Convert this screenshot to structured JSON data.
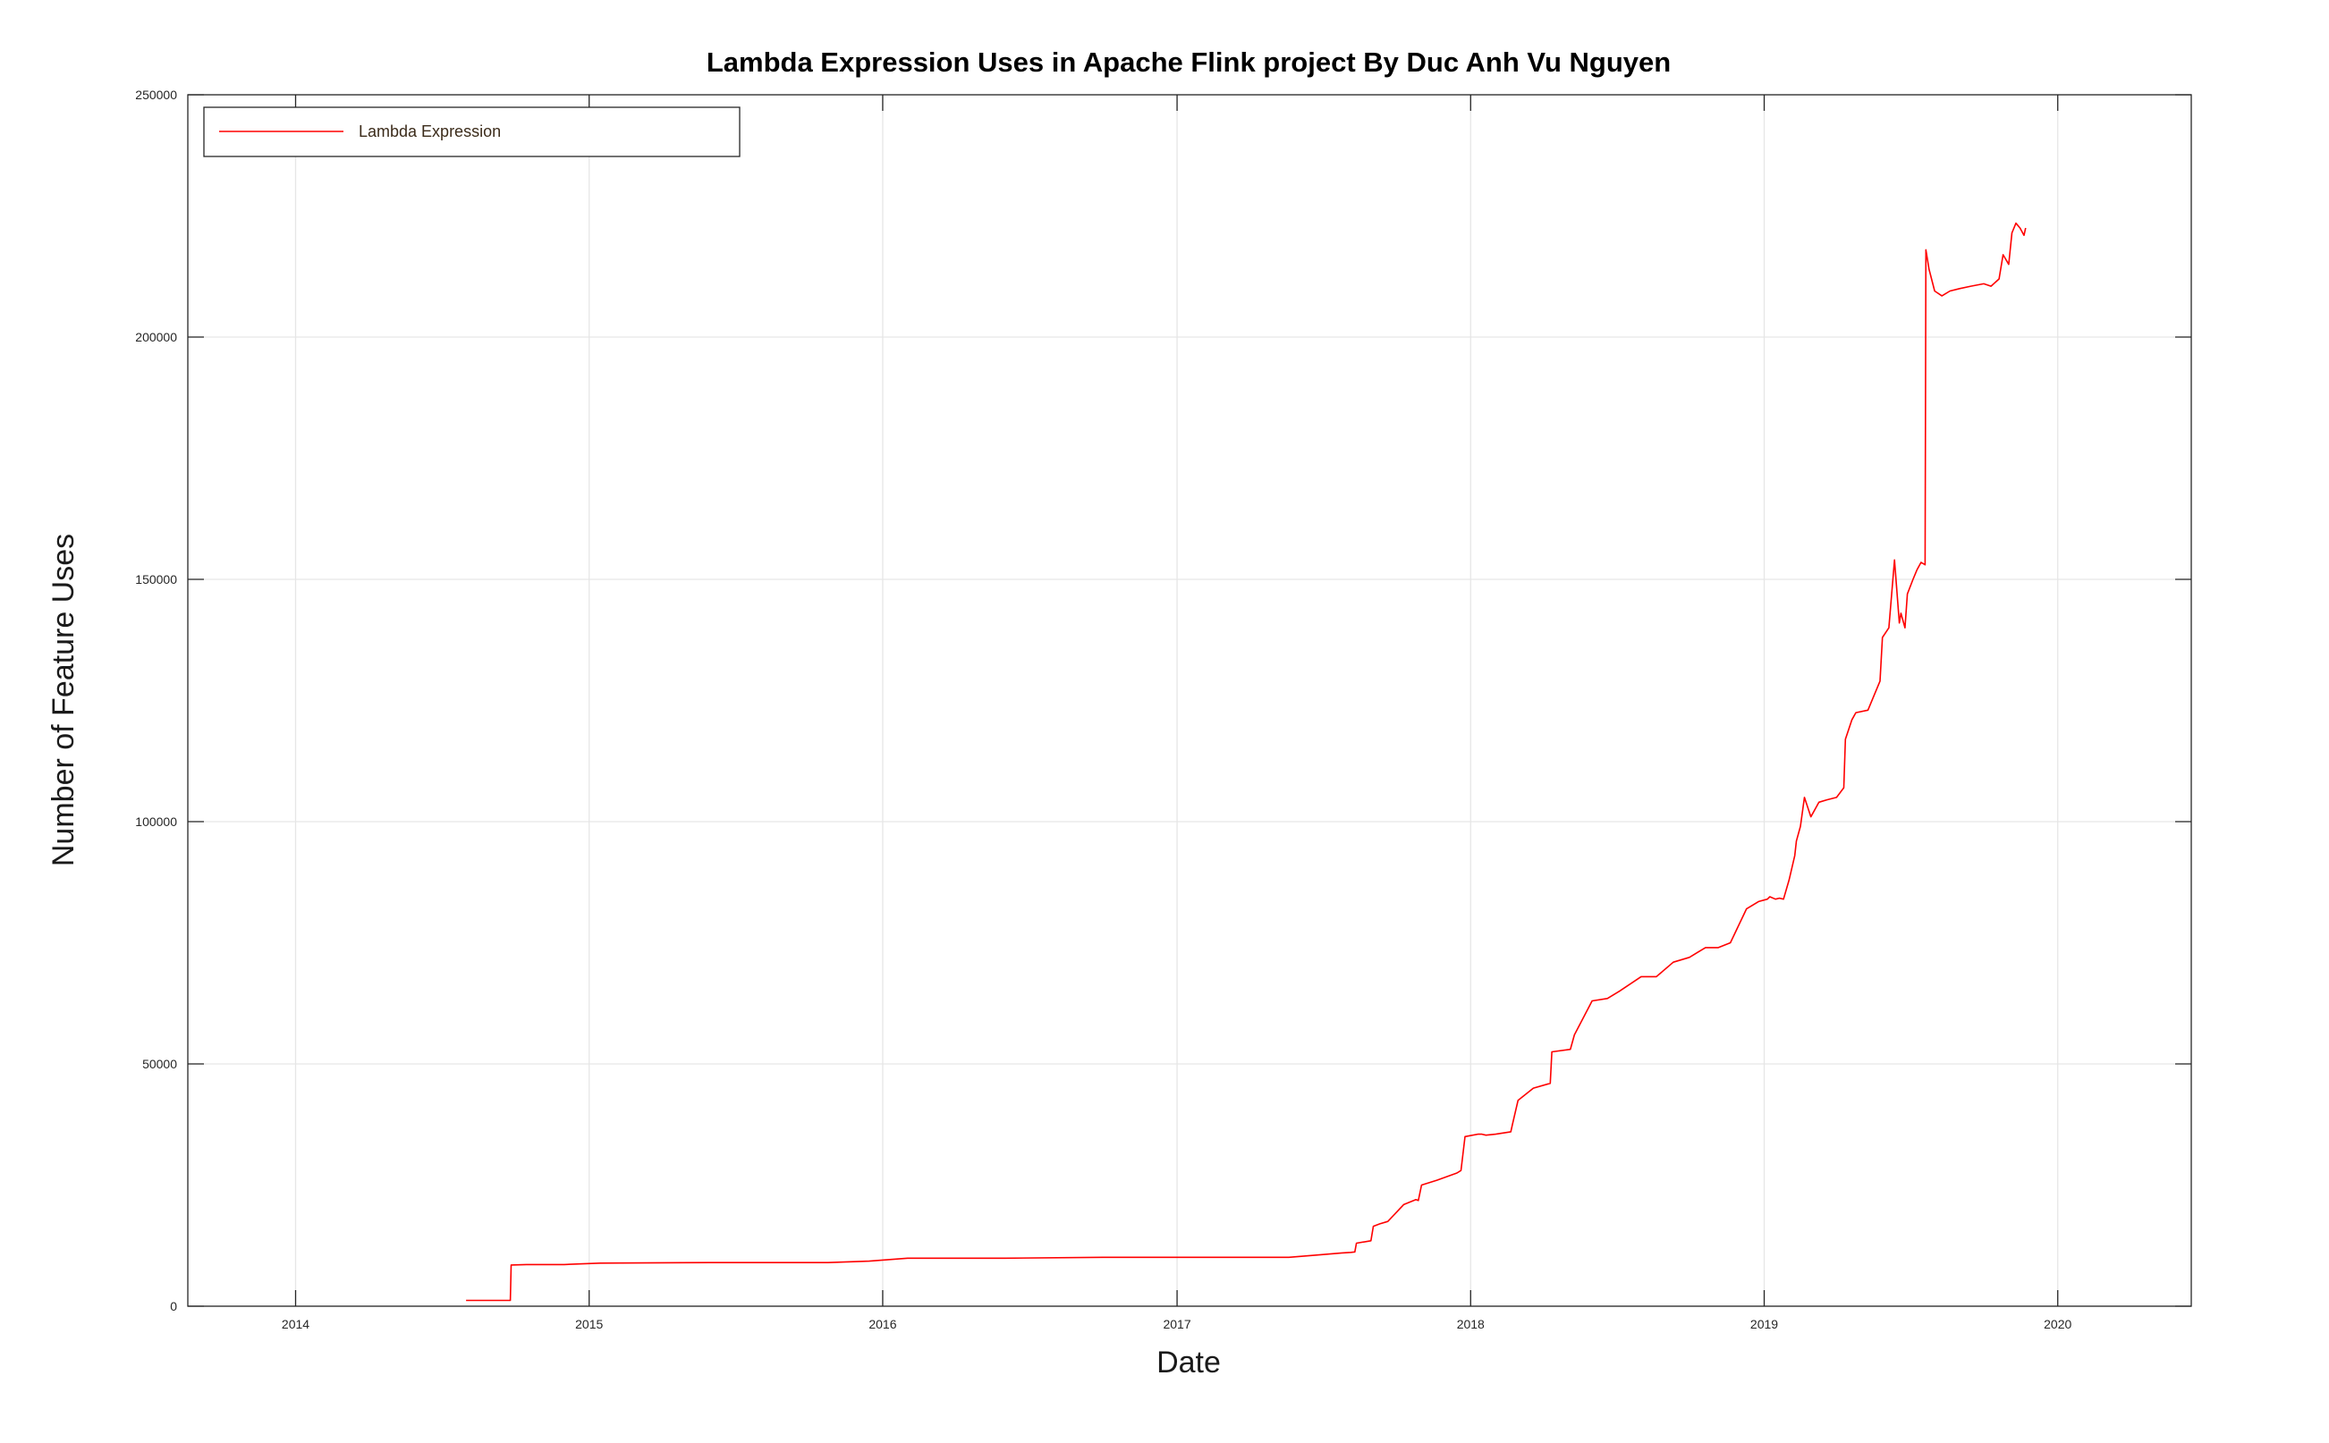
{
  "chart_data": {
    "type": "line",
    "title": "Lambda Expression Uses in Apache Flink project By Duc Anh Vu Nguyen",
    "xlabel": "Date",
    "ylabel": "Number of Feature Uses",
    "xlim": [
      "2013-08-20",
      "2020-06-15"
    ],
    "ylim": [
      0,
      250000
    ],
    "x_ticks": [
      "2014",
      "2015",
      "2016",
      "2017",
      "2018",
      "2019",
      "2020"
    ],
    "y_ticks": [
      "0",
      "50000",
      "100000",
      "150000",
      "200000",
      "250000"
    ],
    "grid": true,
    "legend": {
      "position": "top-left",
      "entries": [
        "Lambda Expression"
      ]
    },
    "colors": {
      "series": "#ff0000",
      "grid": "#e6e6e6",
      "frame": "#262626"
    },
    "series": [
      {
        "name": "Lambda Expression",
        "x": [
          "2014-08-01",
          "2014-09-25",
          "2014-09-26",
          "2014-10-15",
          "2014-12-01",
          "2015-01-15",
          "2015-06-01",
          "2015-10-25",
          "2015-12-15",
          "2016-02-01",
          "2016-06-01",
          "2016-10-01",
          "2017-01-01",
          "2017-04-01",
          "2017-05-20",
          "2017-06-20",
          "2017-07-25",
          "2017-08-05",
          "2017-08-10",
          "2017-08-12",
          "2017-08-30",
          "2017-09-02",
          "2017-09-10",
          "2017-09-20",
          "2017-10-10",
          "2017-10-25",
          "2017-10-28",
          "2017-11-01",
          "2017-11-20",
          "2017-12-15",
          "2017-12-20",
          "2017-12-25",
          "2018-01-10",
          "2018-01-15",
          "2018-01-20",
          "2018-02-01",
          "2018-02-20",
          "2018-02-22",
          "2018-03-01",
          "2018-03-20",
          "2018-04-10",
          "2018-04-12",
          "2018-05-05",
          "2018-05-10",
          "2018-06-01",
          "2018-06-20",
          "2018-07-05",
          "2018-08-01",
          "2018-08-20",
          "2018-09-10",
          "2018-09-30",
          "2018-10-10",
          "2018-10-20",
          "2018-11-05",
          "2018-11-20",
          "2018-12-10",
          "2018-12-25",
          "2019-01-05",
          "2019-01-08",
          "2019-01-15",
          "2019-01-20",
          "2019-01-25",
          "2019-02-01",
          "2019-02-08",
          "2019-02-10",
          "2019-02-15",
          "2019-02-20",
          "2019-02-28",
          "2019-03-10",
          "2019-03-20",
          "2019-04-01",
          "2019-04-10",
          "2019-04-12",
          "2019-04-20",
          "2019-04-25",
          "2019-05-10",
          "2019-05-25",
          "2019-05-28",
          "2019-06-05",
          "2019-06-12",
          "2019-06-18",
          "2019-06-20",
          "2019-06-25",
          "2019-06-28",
          "2019-07-05",
          "2019-07-10",
          "2019-07-15",
          "2019-07-20",
          "2019-07-21",
          "2019-07-25",
          "2019-08-01",
          "2019-08-10",
          "2019-08-20",
          "2019-09-01",
          "2019-09-15",
          "2019-10-01",
          "2019-10-10",
          "2019-10-20",
          "2019-10-25",
          "2019-11-01",
          "2019-11-05",
          "2019-11-10",
          "2019-11-15",
          "2019-11-20",
          "2019-11-22"
        ],
        "y": [
          1200,
          1200,
          8500,
          8600,
          8600,
          8900,
          9000,
          9000,
          9300,
          9900,
          9900,
          10100,
          10100,
          10100,
          10100,
          10500,
          11000,
          11100,
          11200,
          13000,
          13500,
          16500,
          17000,
          17500,
          21000,
          22000,
          21800,
          25000,
          26000,
          27500,
          28000,
          35000,
          35500,
          35500,
          35300,
          35500,
          36000,
          37500,
          42500,
          45000,
          46000,
          52500,
          53000,
          56000,
          63000,
          63500,
          65000,
          68000,
          68000,
          71000,
          72000,
          73000,
          74000,
          74000,
          75000,
          82000,
          83500,
          84000,
          84500,
          84000,
          84200,
          84000,
          88000,
          93000,
          96000,
          99000,
          105000,
          101000,
          104000,
          104500,
          105000,
          107000,
          117000,
          121000,
          122500,
          123000,
          129000,
          138000,
          140000,
          154000,
          141000,
          143000,
          140000,
          147000,
          150000,
          152000,
          153500,
          153000,
          218000,
          214000,
          209500,
          208500,
          209500,
          210000,
          210500,
          211000,
          210500,
          212000,
          217000,
          215000,
          221500,
          223500,
          222500,
          221000,
          222500
        ]
      }
    ]
  }
}
